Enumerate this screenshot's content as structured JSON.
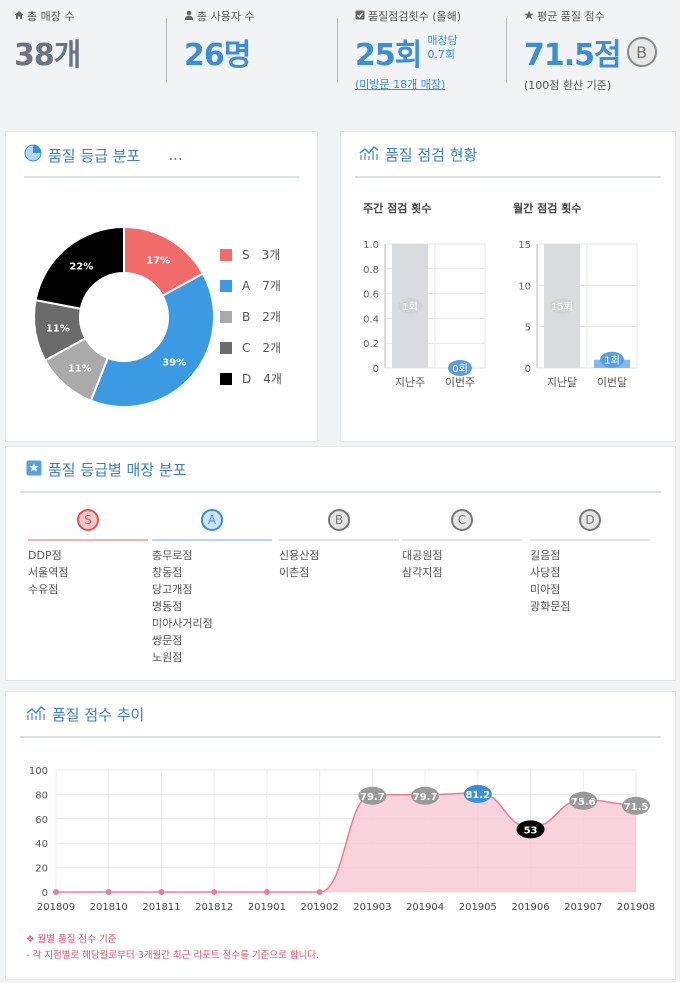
{
  "stats": {
    "stores": {
      "label": "총 매장 수",
      "value": "38개"
    },
    "users": {
      "label": "총 사용자 수",
      "value": "26명"
    },
    "inspections": {
      "label": "품질점검횟수 (올해)",
      "value": "25회",
      "per_store_label": "매장당",
      "per_store_value": "0.7회",
      "link": "(미방문 18개 매장)"
    },
    "avg_score": {
      "label": "평균 품질 점수",
      "value": "71.5점",
      "grade": "B",
      "note": "(100점 환산 기준)"
    }
  },
  "grade_dist": {
    "title": "품질 등급 분포",
    "more": "...",
    "legend": [
      {
        "grade": "S",
        "count": "3개",
        "color": "#f26b6b"
      },
      {
        "grade": "A",
        "count": "7개",
        "color": "#3b9ae1"
      },
      {
        "grade": "B",
        "count": "2개",
        "color": "#aaaaaa"
      },
      {
        "grade": "C",
        "count": "2개",
        "color": "#6b6b6b"
      },
      {
        "grade": "D",
        "count": "4개",
        "color": "#000000"
      }
    ],
    "slices": [
      {
        "grade": "S",
        "pct": 17,
        "label": "17%"
      },
      {
        "grade": "A",
        "pct": 39,
        "label": "39%"
      },
      {
        "grade": "B",
        "pct": 11,
        "label": "11%"
      },
      {
        "grade": "C",
        "pct": 11,
        "label": "11%"
      },
      {
        "grade": "D",
        "pct": 22,
        "label": "22%"
      }
    ]
  },
  "inspection_status": {
    "title": "품질 점검 현황",
    "weekly": {
      "title": "주간 점검 횟수",
      "yticks": [
        "1.0",
        "0.8",
        "0.6",
        "0.4",
        "0.2",
        "0"
      ],
      "ymax": 1,
      "categories": [
        "지난주",
        "이번주"
      ],
      "values": [
        1,
        0
      ],
      "labels": [
        "1회",
        "0회"
      ]
    },
    "monthly": {
      "title": "월간 점검 횟수",
      "yticks": [
        "15",
        "10",
        "5",
        "0"
      ],
      "ymax": 15,
      "categories": [
        "지난달",
        "이번달"
      ],
      "values": [
        15,
        1
      ],
      "labels": [
        "15회",
        "1회"
      ]
    }
  },
  "grade_stores": {
    "title": "품질 등급별 매장 분포",
    "columns": [
      {
        "grade": "S",
        "color": "#e05353",
        "bg": "#f6c9c9",
        "bar": "#f3b3b3",
        "stores": [
          "DDP점",
          "서울역점",
          "수유점"
        ]
      },
      {
        "grade": "A",
        "color": "#3b8ed8",
        "bg": "#cfe3f6",
        "bar": "#b9d4ee",
        "stores": [
          "충무로점",
          "창동점",
          "당고개점",
          "명동점",
          "미아사거리점",
          "쌍문점",
          "노원점"
        ]
      },
      {
        "grade": "B",
        "color": "#777777",
        "bg": "#e4e4e4",
        "bar": "#e3e3e3",
        "stores": [
          "신용산점",
          "이촌점"
        ]
      },
      {
        "grade": "C",
        "color": "#777777",
        "bg": "#e4e4e4",
        "bar": "#e3e3e3",
        "stores": [
          "대공원점",
          "삼각지점"
        ]
      },
      {
        "grade": "D",
        "color": "#777777",
        "bg": "#e4e4e4",
        "bar": "#e3e3e3",
        "stores": [
          "길음점",
          "사당점",
          "미아점",
          "광화문점"
        ]
      }
    ]
  },
  "score_trend": {
    "title": "품질 점수 추이",
    "footnote1": "❖ 월별 품질 점수 기준",
    "footnote2": "- 각 지점별로 해당월로부터 3개월간 최근 리포트 점수를 기준으로 합니다."
  },
  "chart_data": {
    "type": "area",
    "x": [
      "201809",
      "201810",
      "201811",
      "201812",
      "201901",
      "201902",
      "201903",
      "201904",
      "201905",
      "201906",
      "201907",
      "201908"
    ],
    "values": [
      0,
      0,
      0,
      0,
      0,
      0,
      79.7,
      79.7,
      81.2,
      53,
      75.6,
      71.5
    ],
    "data_labels": [
      "",
      "",
      "",
      "",
      "",
      "",
      "79.7",
      "79.7",
      "81.2",
      "53",
      "75.6",
      "71.5"
    ],
    "yticks": [
      "100",
      "80",
      "60",
      "40",
      "20",
      "0"
    ],
    "ylim": [
      0,
      100
    ],
    "colors": {
      "fill": "#f7c8d3",
      "line": "#ef7b9a",
      "highlight_max": "#3b8ed8",
      "highlight_min": "#000000",
      "label": "#9a9a9a"
    }
  }
}
